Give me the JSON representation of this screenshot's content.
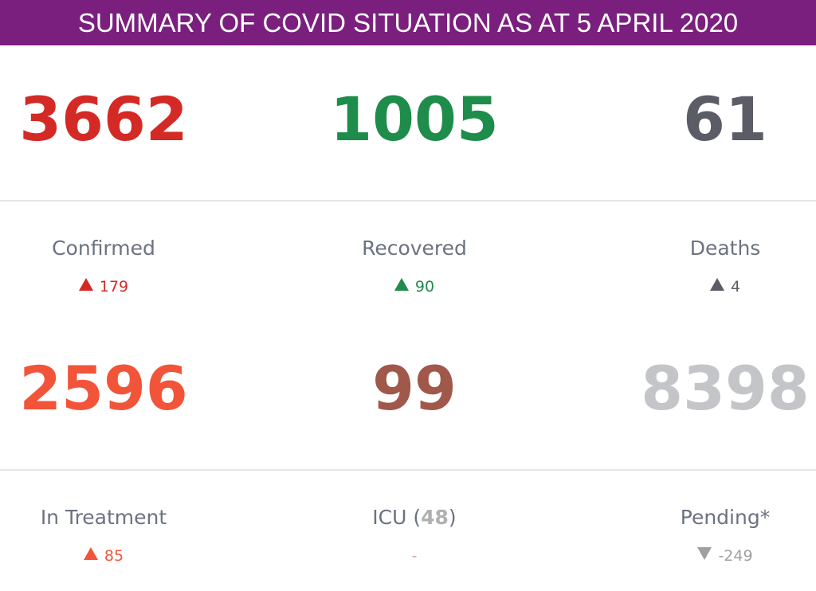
{
  "header": {
    "title": "SUMMARY OF COVID SITUATION AS AT 5 APRIL 2020"
  },
  "rows": [
    [
      {
        "value": 3662,
        "color": "#d42a26",
        "label": "Confirmed",
        "change": 179,
        "direction": "up",
        "change_color": "#d42a26"
      },
      {
        "value": 1005,
        "color": "#1e8c4a",
        "label": "Recovered",
        "change": 90,
        "direction": "up",
        "change_color": "#1e8c4a"
      },
      {
        "value": 61,
        "color": "#5a5c66",
        "label": "Deaths",
        "change": 4,
        "direction": "up",
        "change_color": "#5a5c66"
      }
    ],
    [
      {
        "value": 2596,
        "color": "#f2543a",
        "label": "In Treatment",
        "change": 85,
        "direction": "up",
        "change_color": "#f2543a"
      },
      {
        "value": 99,
        "color": "#a0584a",
        "label": "ICU (",
        "label_count": "48",
        "label_end": ")",
        "change": "-",
        "change_color": "#e8a09a"
      },
      {
        "value": 8398,
        "color": "#c4c5c8",
        "label": "Pending*",
        "change": -249,
        "direction": "down",
        "change_color": "#a0a0a0"
      }
    ]
  ]
}
